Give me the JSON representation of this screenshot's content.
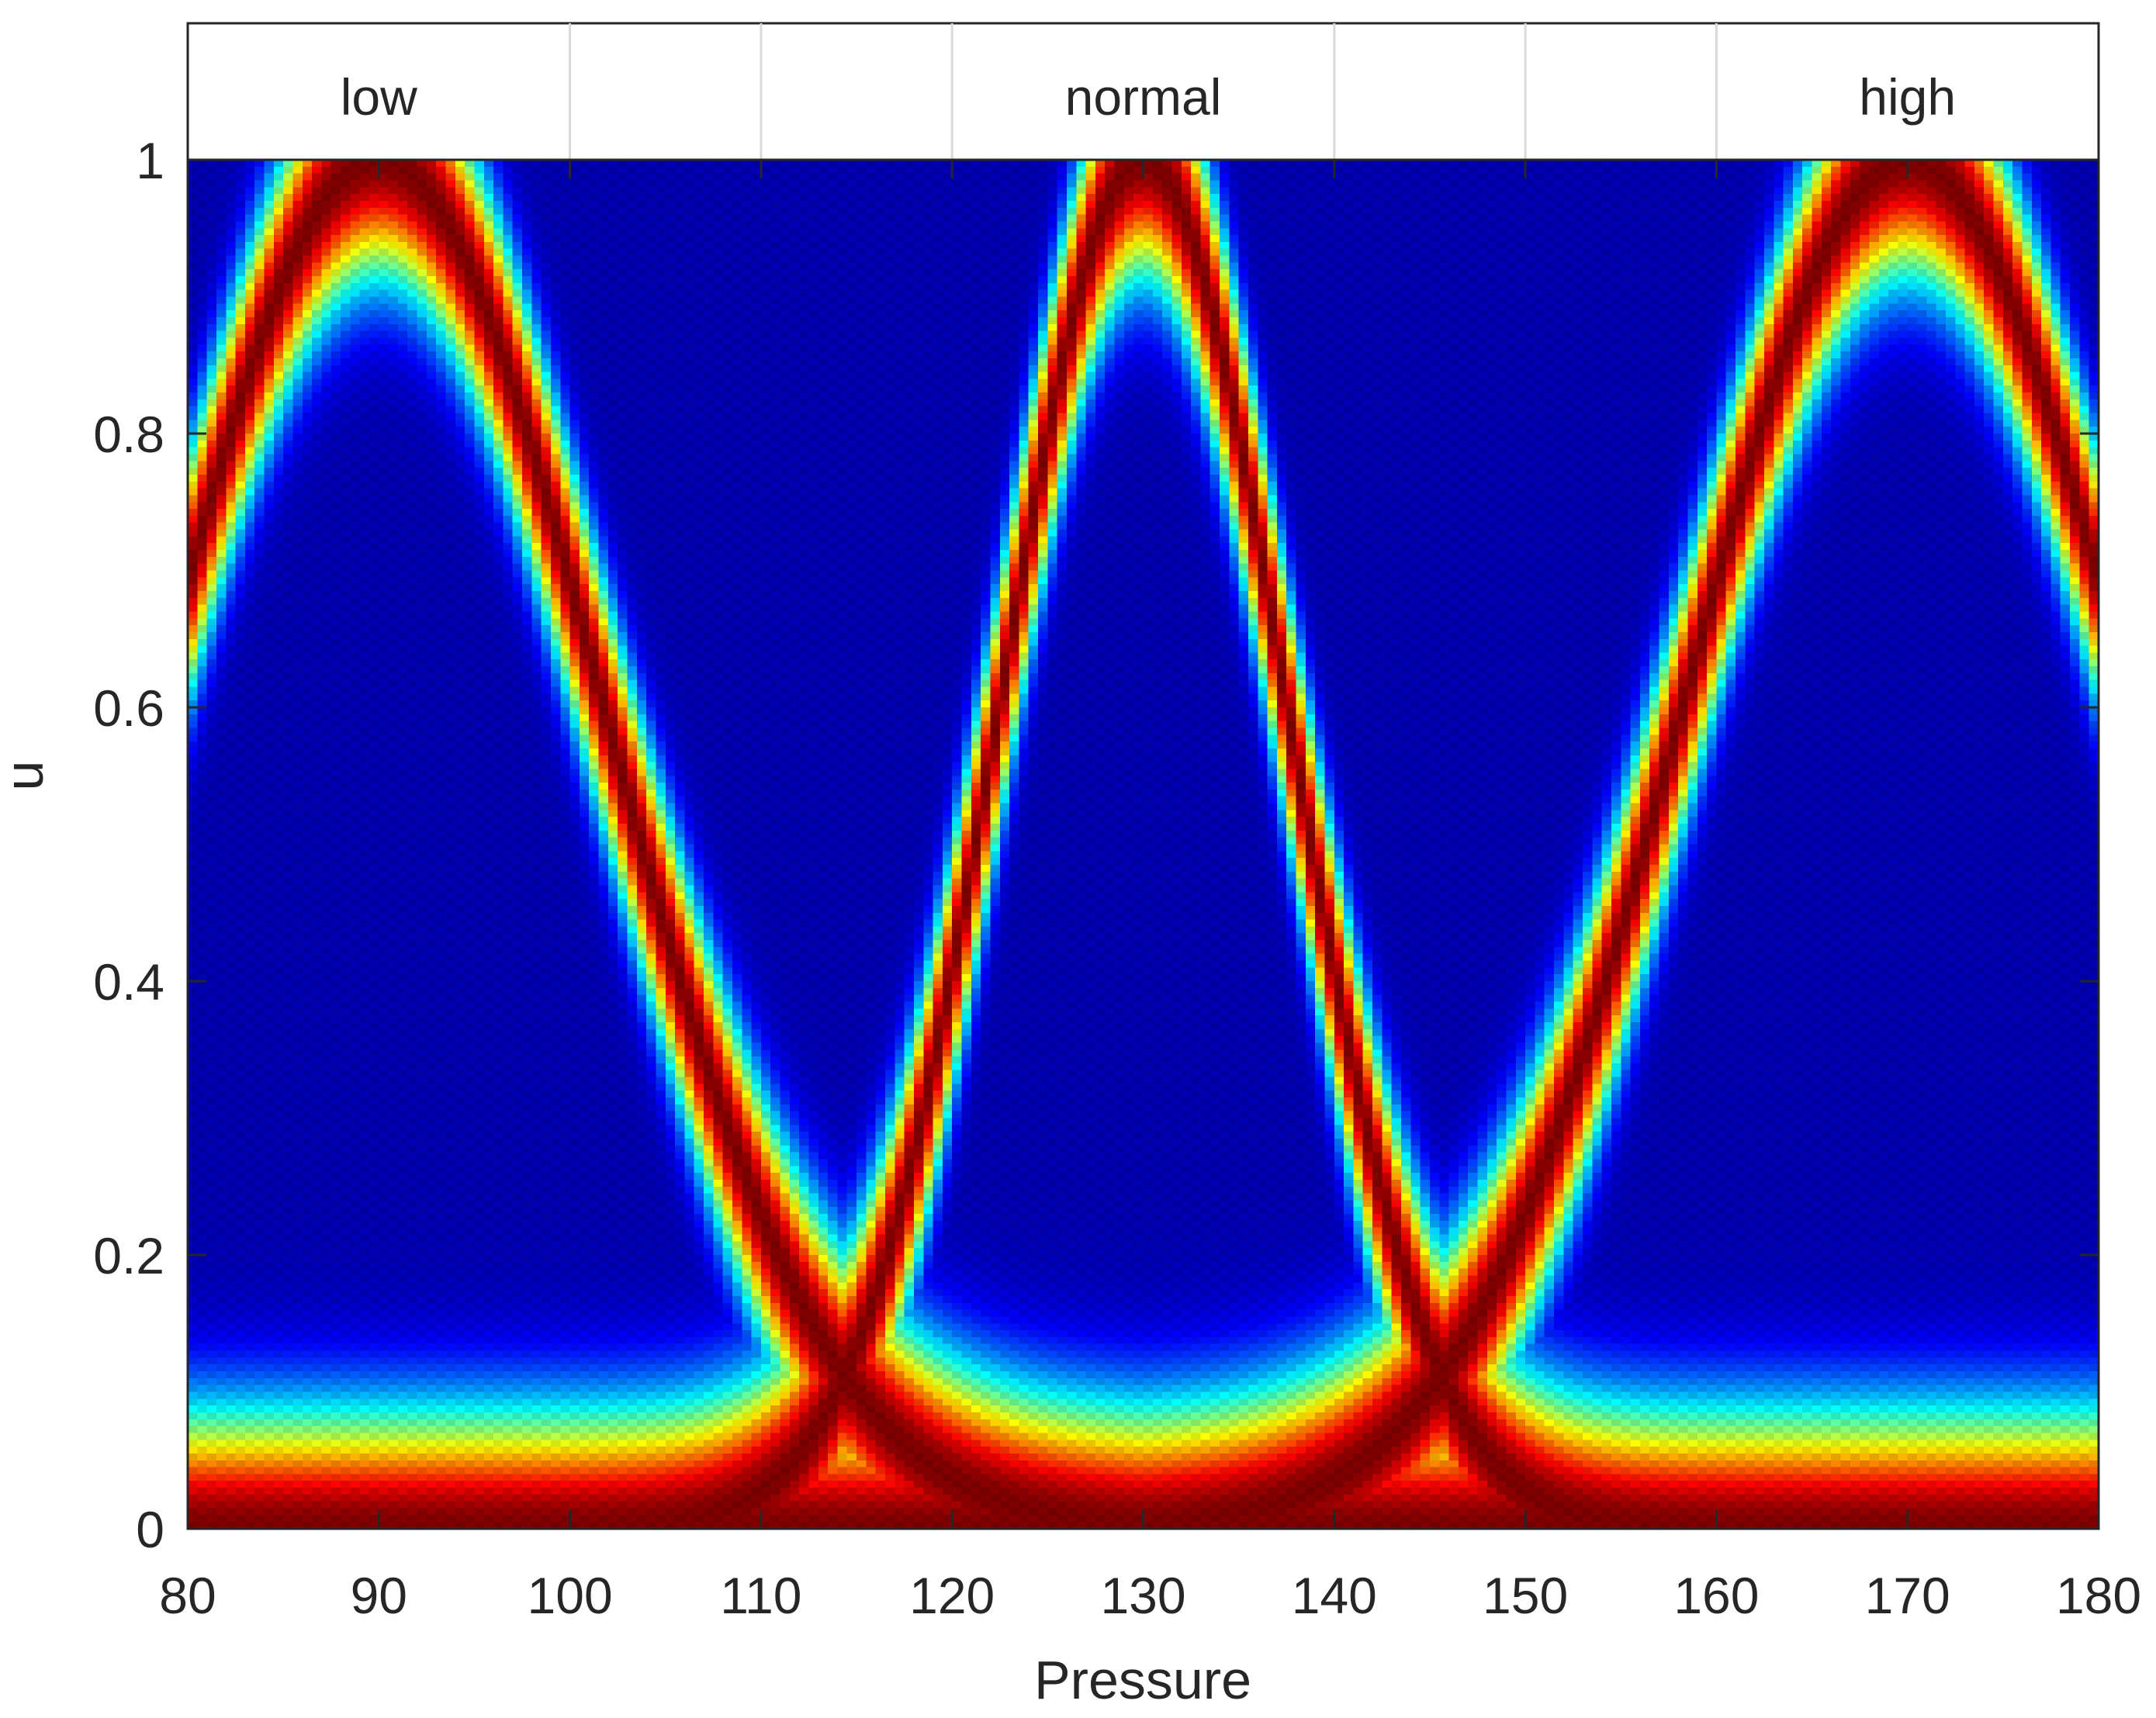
{
  "chart_data": {
    "type": "heatmap",
    "title": "",
    "xlabel": "Pressure",
    "ylabel": "u",
    "xlim": [
      80,
      180
    ],
    "ylim": [
      0,
      1
    ],
    "x_ticks": [
      "80",
      "90",
      "100",
      "110",
      "120",
      "130",
      "140",
      "150",
      "160",
      "170",
      "180"
    ],
    "y_ticks": [
      "0",
      "0.2",
      "0.4",
      "0.6",
      "0.8",
      "1"
    ],
    "top_band_labels": [
      {
        "text": "low",
        "x": 90
      },
      {
        "text": "normal",
        "x": 130
      },
      {
        "text": "high",
        "x": 170
      }
    ],
    "top_band_gridlines": [
      100,
      110,
      120,
      140,
      150,
      160
    ],
    "colormap": "jet",
    "grid": true,
    "membership_functions": [
      {
        "label": "low",
        "center": 90,
        "halfwidth": 25,
        "upper_break": 105
      },
      {
        "label": "normal",
        "center": 130,
        "halfwidth": 16,
        "lower_break": 114,
        "upper_break": 146
      },
      {
        "label": "high",
        "center": 170,
        "halfwidth": 25,
        "lower_break": 155
      }
    ],
    "grid_cells": {
      "x_cells": 200,
      "y_cells": 200
    }
  },
  "colors": {
    "background": "#00007f",
    "axis": "#262626",
    "tick_grid": "#d9d9d9"
  }
}
